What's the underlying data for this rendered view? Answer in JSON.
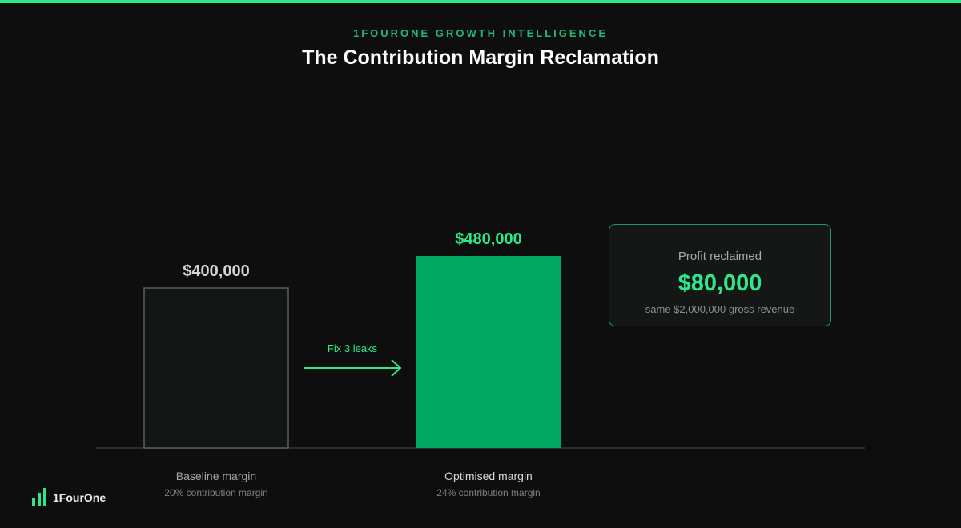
{
  "header": {
    "eyebrow": "1FOURONE GROWTH INTELLIGENCE",
    "title": "The Contribution Margin Reclamation"
  },
  "chart_data": {
    "type": "bar",
    "title": "The Contribution Margin Reclamation",
    "categories": [
      "Baseline margin",
      "Optimised margin"
    ],
    "sublabels": [
      "20% contribution margin",
      "24% contribution margin"
    ],
    "values": [
      400000,
      480000
    ],
    "value_labels": [
      "$400,000",
      "$480,000"
    ],
    "ylim": [
      0,
      640000
    ],
    "grid": false,
    "annotation": "Fix 3 leaks",
    "colors": {
      "baseline_fill": "#141615",
      "baseline_stroke": "#5a5d5b",
      "optimised_fill": "#00a866",
      "accent": "#2de88a",
      "baseline_label": "#d4d6d4"
    }
  },
  "callout": {
    "label": "Profit reclaimed",
    "value": "$80,000",
    "note": "same $2,000,000 gross revenue"
  },
  "brand": {
    "name": "1FourOne",
    "icon": "bar-chart-logo-icon"
  }
}
